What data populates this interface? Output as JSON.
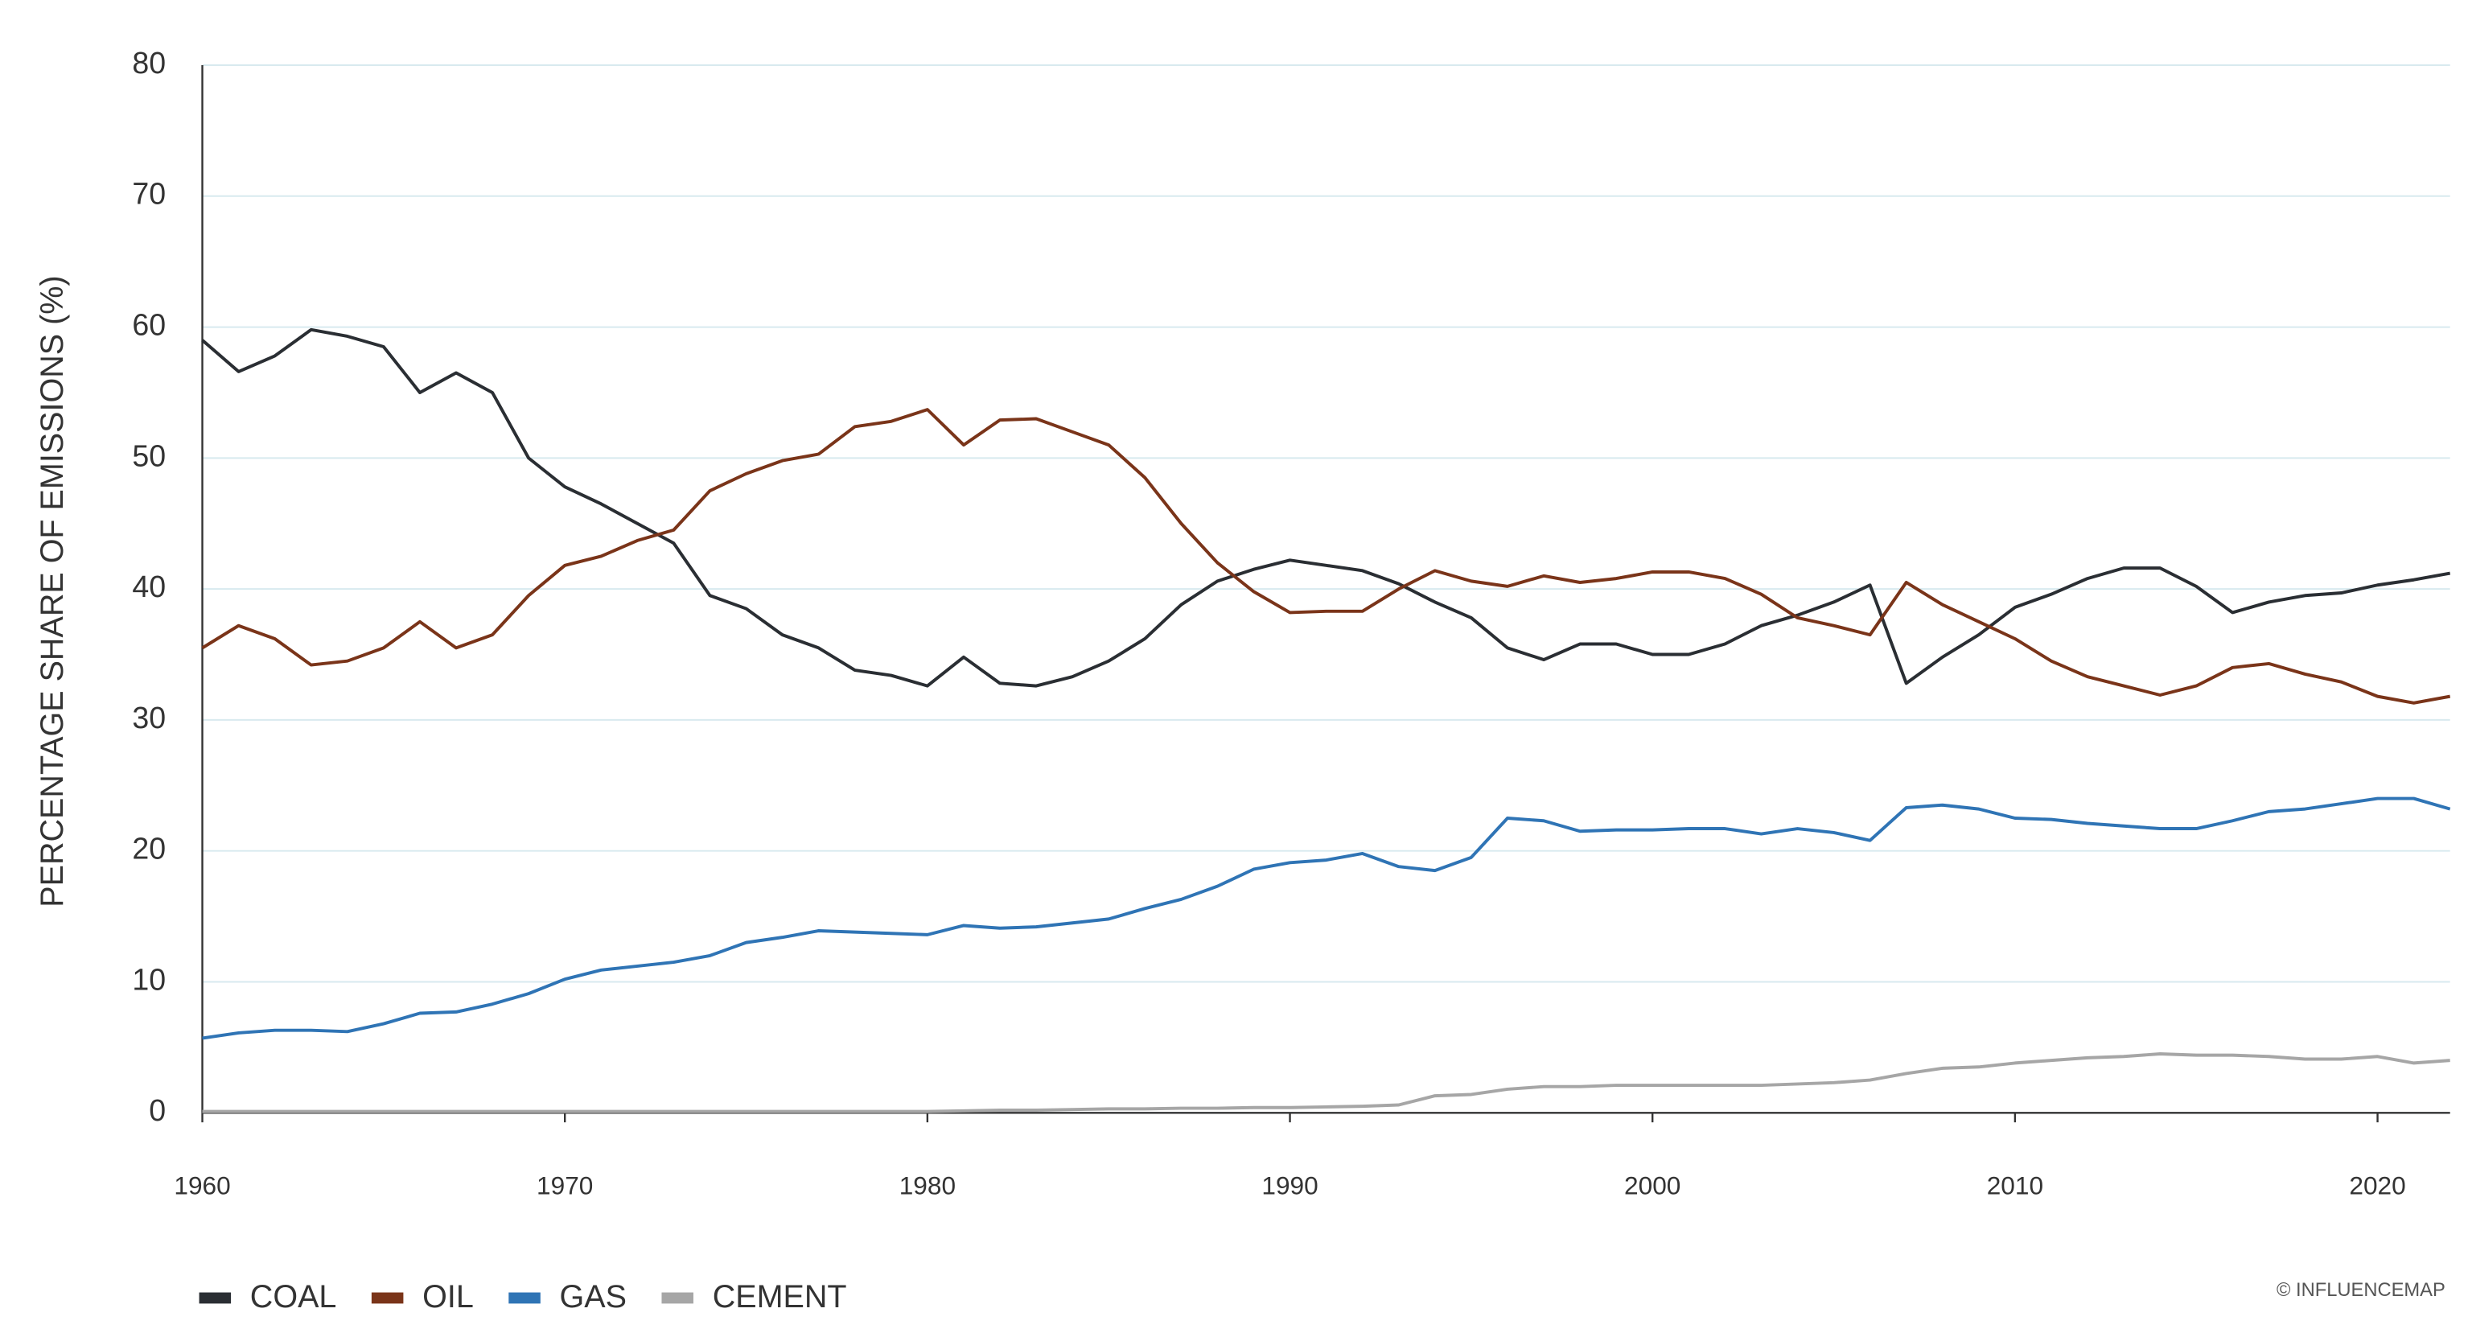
{
  "chart_data": {
    "type": "line",
    "y_label": "PERCENTAGE SHARE OF EMISSIONS (%)",
    "annotation": "© INFLUENCEMAP",
    "x": [
      1960,
      1961,
      1962,
      1963,
      1964,
      1965,
      1966,
      1967,
      1968,
      1969,
      1970,
      1971,
      1972,
      1973,
      1974,
      1975,
      1976,
      1977,
      1978,
      1979,
      1980,
      1981,
      1982,
      1983,
      1984,
      1985,
      1986,
      1987,
      1988,
      1989,
      1990,
      1991,
      1992,
      1993,
      1994,
      1995,
      1996,
      1997,
      1998,
      1999,
      2000,
      2001,
      2002,
      2003,
      2004,
      2005,
      2006,
      2007,
      2008,
      2009,
      2010,
      2011,
      2012,
      2013,
      2014,
      2015,
      2016,
      2017,
      2018,
      2019,
      2020,
      2021,
      2022
    ],
    "xlim": [
      1960,
      2022
    ],
    "xticks": [
      1960,
      1970,
      1980,
      1990,
      2000,
      2010,
      2020
    ],
    "ylim": [
      0,
      80
    ],
    "yticks": [
      0,
      10,
      20,
      30,
      40,
      50,
      60,
      70,
      80
    ],
    "grid": true,
    "legend": "bottom-left",
    "series": [
      {
        "name": "COAL",
        "color": "#2a2e33",
        "values": [
          59,
          56.6,
          57.8,
          59.8,
          59.3,
          58.5,
          55,
          56.5,
          55,
          50,
          47.8,
          46.5,
          45,
          43.5,
          39.5,
          38.5,
          36.5,
          35.5,
          33.8,
          33.4,
          32.6,
          34.8,
          32.8,
          32.6,
          33.3,
          34.5,
          36.2,
          38.8,
          40.6,
          41.5,
          42.2,
          41.8,
          41.4,
          40.4,
          39,
          37.8,
          35.5,
          34.6,
          35.8,
          35.8,
          35,
          35,
          35.8,
          37.2,
          38,
          39,
          40.3,
          32.8,
          34.8,
          36.5,
          38.6,
          39.6,
          40.8,
          41.6,
          41.6,
          40.2,
          38.2,
          39,
          39.5,
          39.7,
          40.3,
          40.7,
          41.2
        ]
      },
      {
        "name": "OIL",
        "color": "#7a3419",
        "values": [
          35.5,
          37.2,
          36.2,
          34.2,
          34.5,
          35.5,
          37.5,
          35.5,
          36.5,
          39.5,
          41.8,
          42.5,
          43.7,
          44.5,
          47.5,
          48.8,
          49.8,
          50.3,
          52.4,
          52.8,
          53.7,
          51,
          52.9,
          53,
          52,
          51,
          48.5,
          45,
          42,
          39.8,
          38.2,
          38.3,
          38.3,
          40,
          41.4,
          40.6,
          40.2,
          41,
          40.5,
          40.8,
          41.3,
          41.3,
          40.8,
          39.6,
          37.8,
          37.2,
          36.5,
          40.5,
          38.8,
          37.5,
          36.2,
          34.5,
          33.3,
          32.6,
          31.9,
          32.6,
          34,
          34.3,
          33.5,
          32.9,
          31.8,
          31.3,
          31.8
        ]
      },
      {
        "name": "GAS",
        "color": "#2f74b5",
        "values": [
          5.7,
          6.1,
          6.3,
          6.3,
          6.2,
          6.8,
          7.6,
          7.7,
          8.3,
          9.1,
          10.2,
          10.9,
          11.2,
          11.5,
          12,
          13,
          13.4,
          13.9,
          13.8,
          13.7,
          13.6,
          14.3,
          14.1,
          14.2,
          14.5,
          14.8,
          15.6,
          16.3,
          17.3,
          18.6,
          19.1,
          19.3,
          19.8,
          18.8,
          18.5,
          19.5,
          22.5,
          22.3,
          21.5,
          21.6,
          21.6,
          21.7,
          21.7,
          21.3,
          21.7,
          21.4,
          20.8,
          23.3,
          23.5,
          23.2,
          22.5,
          22.4,
          22.1,
          21.9,
          21.7,
          21.7,
          22.3,
          23,
          23.2,
          23.6,
          24,
          24,
          23.2
        ]
      },
      {
        "name": "CEMENT",
        "color": "#a6a6a6",
        "values": [
          0.1,
          0.1,
          0.1,
          0.1,
          0.1,
          0.1,
          0.1,
          0.1,
          0.1,
          0.1,
          0.1,
          0.1,
          0.1,
          0.1,
          0.1,
          0.1,
          0.1,
          0.1,
          0.1,
          0.1,
          0.1,
          0.15,
          0.2,
          0.2,
          0.25,
          0.3,
          0.3,
          0.35,
          0.35,
          0.4,
          0.4,
          0.45,
          0.5,
          0.6,
          1.3,
          1.4,
          1.8,
          2,
          2,
          2.1,
          2.1,
          2.1,
          2.1,
          2.1,
          2.2,
          2.3,
          2.5,
          3,
          3.4,
          3.5,
          3.8,
          4,
          4.2,
          4.3,
          4.5,
          4.4,
          4.4,
          4.3,
          4.1,
          4.1,
          4.3,
          3.8,
          4
        ]
      }
    ]
  }
}
